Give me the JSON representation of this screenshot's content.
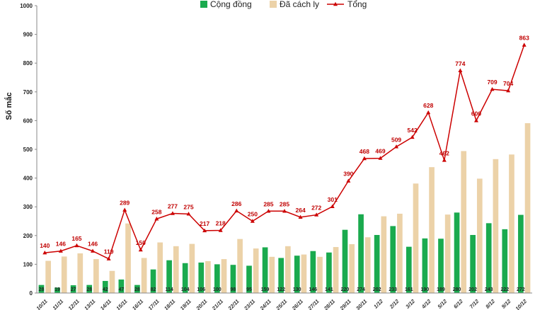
{
  "chart_data": {
    "type": "bar",
    "ylabel": "Số mắc",
    "ylim": [
      0,
      1000
    ],
    "yticks": [
      0,
      100,
      200,
      300,
      400,
      500,
      600,
      700,
      800,
      900,
      1000
    ],
    "categories": [
      "10/11",
      "11/11",
      "12/11",
      "13/11",
      "14/11",
      "15/11",
      "16/11",
      "17/11",
      "18/11",
      "19/11",
      "20/11",
      "21/11",
      "22/11",
      "23/11",
      "24/11",
      "25/11",
      "26/11",
      "27/11",
      "28/11",
      "29/11",
      "30/11",
      "1/12",
      "2/12",
      "3/12",
      "4/12",
      "5/12",
      "6/12",
      "7/12",
      "8/12",
      "9/12",
      "10/12"
    ],
    "legend_position": "top",
    "grid": false,
    "series": [
      {
        "name": "Cộng đồng",
        "type": "bar",
        "color": "#1aaa4e",
        "values": [
          28,
          19,
          27,
          28,
          42,
          47,
          28,
          82,
          114,
          104,
          106,
          100,
          98,
          95,
          159,
          122,
          130,
          146,
          141,
          220,
          274,
          202,
          233,
          161,
          190,
          189,
          280,
          202,
          243,
          222,
          272
        ]
      },
      {
        "name": "Đã cách ly",
        "type": "bar",
        "color": "#ecd2a8",
        "values": [
          112,
          127,
          138,
          118,
          77,
          242,
          122,
          176,
          163,
          171,
          111,
          118,
          188,
          155,
          126,
          163,
          134,
          126,
          160,
          170,
          194,
          267,
          276,
          381,
          438,
          273,
          494,
          398,
          466,
          482,
          591
        ]
      },
      {
        "name": "Tổng",
        "type": "line",
        "color": "#cc0000",
        "values": [
          140,
          146,
          165,
          146,
          119,
          289,
          150,
          258,
          277,
          275,
          217,
          218,
          286,
          250,
          285,
          285,
          264,
          272,
          301,
          390,
          468,
          469,
          509,
          542,
          628,
          462,
          774,
          600,
          709,
          704,
          863
        ]
      }
    ]
  }
}
